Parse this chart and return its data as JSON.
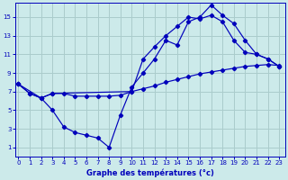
{
  "xlabel": "Graphe des températures (°c)",
  "bg_color": "#cceaea",
  "grid_color": "#aacccc",
  "line_color": "#0000bb",
  "x_ticks": [
    0,
    1,
    2,
    3,
    4,
    5,
    6,
    7,
    8,
    9,
    10,
    11,
    12,
    13,
    14,
    15,
    16,
    17,
    18,
    19,
    20,
    21,
    22,
    23
  ],
  "y_ticks": [
    1,
    3,
    5,
    7,
    9,
    11,
    13,
    15
  ],
  "ylim": [
    0.0,
    16.5
  ],
  "xlim": [
    -0.3,
    23.5
  ],
  "line1_x": [
    0,
    1,
    2,
    3,
    4,
    5,
    6,
    7,
    8,
    9,
    10,
    11,
    12,
    13,
    14,
    15,
    16,
    17,
    18,
    19,
    20,
    21,
    22,
    23
  ],
  "line1_y": [
    7.8,
    6.8,
    6.3,
    6.8,
    6.8,
    6.5,
    6.5,
    6.5,
    6.5,
    6.6,
    7.0,
    7.3,
    7.6,
    8.0,
    8.3,
    8.6,
    8.9,
    9.1,
    9.3,
    9.5,
    9.7,
    9.8,
    9.9,
    9.8
  ],
  "line2_x": [
    0,
    1,
    2,
    3,
    4,
    5,
    6,
    7,
    8,
    9,
    10,
    11,
    12,
    13,
    14,
    15,
    16,
    17,
    18,
    19,
    20,
    21,
    22,
    23
  ],
  "line2_y": [
    7.8,
    6.8,
    6.3,
    5.0,
    3.2,
    2.6,
    2.3,
    2.0,
    1.0,
    4.5,
    7.5,
    9.0,
    10.5,
    12.5,
    12.0,
    14.5,
    15.0,
    16.3,
    15.2,
    14.3,
    12.5,
    11.0,
    10.5,
    9.7
  ],
  "line3_x": [
    0,
    2,
    3,
    10,
    11,
    12,
    13,
    14,
    15,
    16,
    17,
    18,
    19,
    20,
    21,
    22,
    23
  ],
  "line3_y": [
    7.8,
    6.3,
    6.8,
    7.0,
    10.5,
    11.8,
    13.0,
    14.0,
    15.0,
    14.8,
    15.2,
    14.5,
    12.5,
    11.2,
    11.0,
    10.5,
    9.7
  ]
}
